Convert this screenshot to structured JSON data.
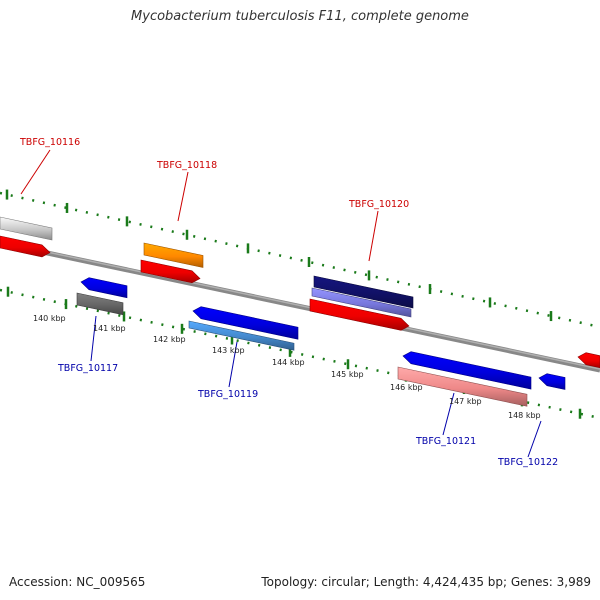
{
  "title": "Mycobacterium tuberculosis F11, complete genome",
  "footer": {
    "accession": "Accession: NC_009565",
    "stats": "Topology: circular; Length: 4,424,435 bp; Genes: 3,989"
  },
  "colors": {
    "backbone": "#808080",
    "tick": "#1a7a1a",
    "label_forward": "#cc0000",
    "label_reverse": "#0000aa"
  },
  "kbp_labels": [
    "140 kbp",
    "141 kbp",
    "142 kbp",
    "143 kbp",
    "144 kbp",
    "145 kbp",
    "146 kbp",
    "147 kbp",
    "148 kbp"
  ],
  "gene_labels": [
    {
      "name": "TBFG_10116",
      "strand": "forward"
    },
    {
      "name": "TBFG_10117",
      "strand": "reverse"
    },
    {
      "name": "TBFG_10118",
      "strand": "forward"
    },
    {
      "name": "TBFG_10119",
      "strand": "reverse"
    },
    {
      "name": "TBFG_10120",
      "strand": "forward"
    },
    {
      "name": "TBFG_10121",
      "strand": "reverse"
    },
    {
      "name": "TBFG_10122",
      "strand": "reverse"
    }
  ],
  "features": [
    {
      "kind": "block",
      "color": "#c8c8c8"
    },
    {
      "kind": "arrow",
      "color": "#ee0000"
    },
    {
      "kind": "arrow-left",
      "color": "#0000dd"
    },
    {
      "kind": "block",
      "color": "#666666"
    },
    {
      "kind": "block",
      "color": "#ff8800"
    },
    {
      "kind": "arrow",
      "color": "#ee0000"
    },
    {
      "kind": "arrow-left",
      "color": "#0000dd"
    },
    {
      "kind": "block",
      "color": "#4488cc"
    },
    {
      "kind": "block",
      "color": "#111166"
    },
    {
      "kind": "block",
      "color": "#7777dd"
    },
    {
      "kind": "arrow",
      "color": "#ee0000"
    },
    {
      "kind": "arrow-left",
      "color": "#0000dd"
    },
    {
      "kind": "block",
      "color": "#ee8888"
    },
    {
      "kind": "arrow-left",
      "color": "#0000dd"
    },
    {
      "kind": "arrow-left",
      "color": "#ee0000"
    }
  ]
}
